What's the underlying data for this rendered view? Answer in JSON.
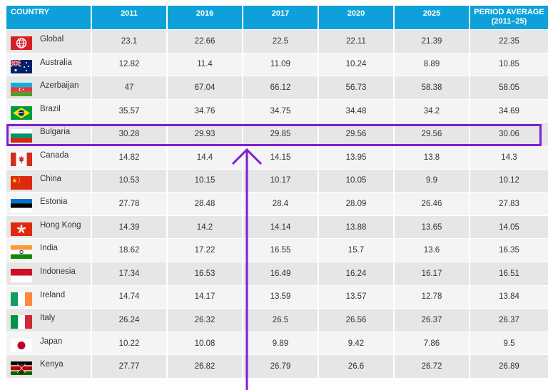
{
  "chart_data": {
    "type": "table",
    "columns": [
      "COUNTRY",
      "2011",
      "2016",
      "2017",
      "2020",
      "2025",
      "PERIOD AVERAGE",
      "(2011–25)"
    ],
    "rows": [
      {
        "country": "Global",
        "flag": "globe-icon",
        "values": [
          "23.1",
          "22.66",
          "22.5",
          "22.11",
          "21.39",
          "22.35"
        ]
      },
      {
        "country": "Australia",
        "flag": "australia-flag",
        "values": [
          "12.82",
          "11.4",
          "11.09",
          "10.24",
          "8.89",
          "10.85"
        ]
      },
      {
        "country": "Azerbaijan",
        "flag": "azerbaijan-flag",
        "values": [
          "47",
          "67.04",
          "66.12",
          "56.73",
          "58.38",
          "58.05"
        ]
      },
      {
        "country": "Brazil",
        "flag": "brazil-flag",
        "values": [
          "35.57",
          "34.76",
          "34.75",
          "34.48",
          "34.2",
          "34.69"
        ]
      },
      {
        "country": "Bulgaria",
        "flag": "bulgaria-flag",
        "values": [
          "30.28",
          "29.93",
          "29.85",
          "29.56",
          "29.56",
          "30.06"
        ]
      },
      {
        "country": "Canada",
        "flag": "canada-flag",
        "values": [
          "14.82",
          "14.4",
          "14.15",
          "13.95",
          "13.8",
          "14.3"
        ]
      },
      {
        "country": "China",
        "flag": "china-flag",
        "values": [
          "10.53",
          "10.15",
          "10.17",
          "10.05",
          "9.9",
          "10.12"
        ]
      },
      {
        "country": "Estonia",
        "flag": "estonia-flag",
        "values": [
          "27.78",
          "28.48",
          "28.4",
          "28.09",
          "26.46",
          "27.83"
        ]
      },
      {
        "country": "Hong Kong",
        "flag": "hong-kong-flag",
        "values": [
          "14.39",
          "14.2",
          "14.14",
          "13.88",
          "13.65",
          "14.05"
        ]
      },
      {
        "country": "India",
        "flag": "india-flag",
        "values": [
          "18.62",
          "17.22",
          "16.55",
          "15.7",
          "13.6",
          "16.35"
        ]
      },
      {
        "country": "Indonesia",
        "flag": "indonesia-flag",
        "values": [
          "17.34",
          "16.53",
          "16.49",
          "16.24",
          "16.17",
          "16.51"
        ]
      },
      {
        "country": "Ireland",
        "flag": "ireland-flag",
        "values": [
          "14.74",
          "14.17",
          "13.59",
          "13.57",
          "12.78",
          "13.84"
        ]
      },
      {
        "country": "Italy",
        "flag": "italy-flag",
        "values": [
          "26.24",
          "26.32",
          "26.5",
          "26.56",
          "26.37",
          "26.37"
        ]
      },
      {
        "country": "Japan",
        "flag": "japan-flag",
        "values": [
          "10.22",
          "10.08",
          "9.89",
          "9.42",
          "7.86",
          "9.5"
        ]
      },
      {
        "country": "Kenya",
        "flag": "kenya-flag",
        "values": [
          "27.77",
          "26.82",
          "26.79",
          "26.6",
          "26.72",
          "26.89"
        ]
      }
    ],
    "highlighted_row": "Bulgaria",
    "colors": {
      "header_bg": "#0ea1d9",
      "header_text": "#ffffff",
      "highlight": "#7f1fd0",
      "cell_dark": "#e6e6e6",
      "cell_light": "#f4f4f4"
    }
  }
}
